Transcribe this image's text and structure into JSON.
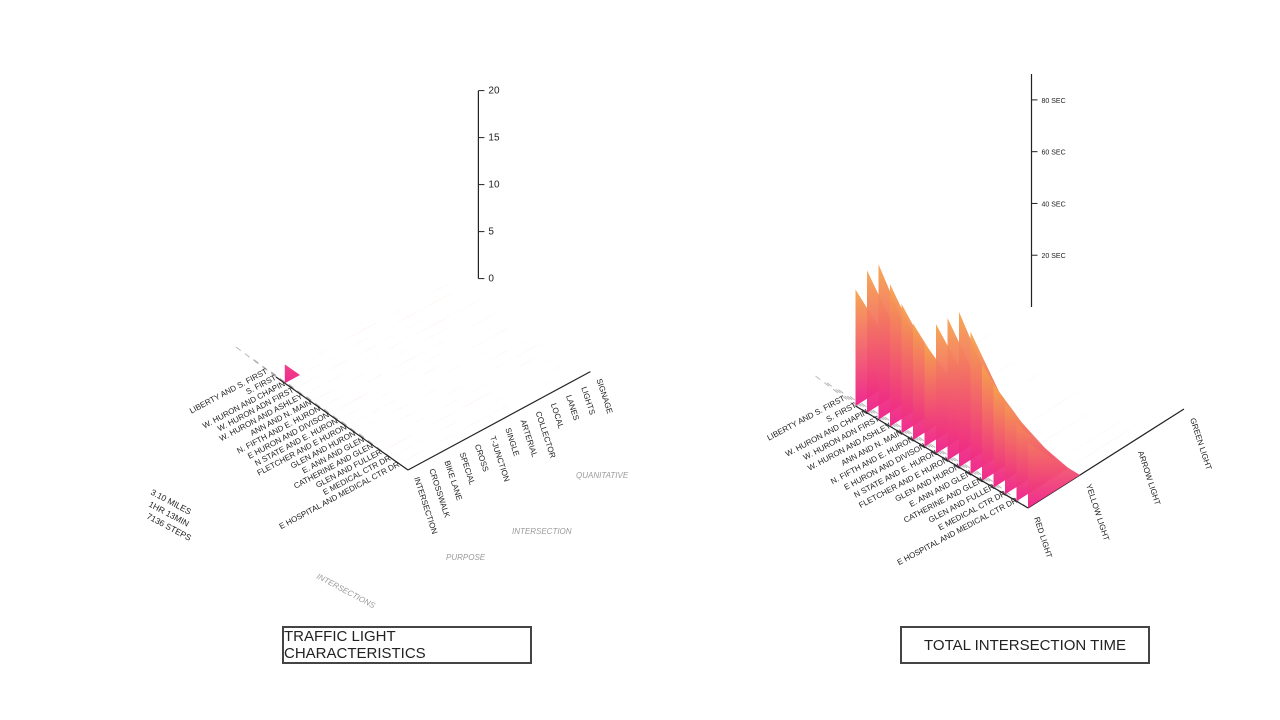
{
  "colors": {
    "low": "#ee1f8a",
    "high": "#f6a44c",
    "axis": "#222222",
    "guide": "#8a8a8a",
    "subtle": "#9a9a9a"
  },
  "charts": {
    "traffic_light": {
      "caption": "TRAFFIC LIGHT CHARACTERISTICS",
      "summary": [
        "3.10 MILES",
        "1HR 13MIN",
        "7136 STEPS"
      ],
      "group_labels": [
        "INTERSECTIONS",
        "PURPOSE",
        "INTERSECTION",
        "QUANITATIVE"
      ]
    },
    "intersection_time": {
      "caption": "TOTAL INTERSECTION TIME"
    }
  },
  "chart_data": [
    {
      "type": "area",
      "title": "TRAFFIC LIGHT CHARACTERISTICS",
      "rows": [
        "LIBERTY AND S. FIRST",
        "S. FIRST",
        "W. HURON AND CHAPIN",
        "W. HURON ADN FIRST",
        "W. HURON AND ASHLEY",
        "ANN AND N. MAIN",
        "N. FIFTH AND E. HURON",
        "E HURON AND DIVISON",
        "N STATE AND E. HURON",
        "FLETCHER AND E HURON",
        "GLEN AND HURON",
        "E. ANN AND GLEN",
        "CATHERINE AND GLEN",
        "GLEN AND FULLER",
        "E MEDICAL CTR DR",
        "E HOSPITAL AND MEDICAL CTR DR"
      ],
      "columns": [
        "INTERSECTION",
        "CROSSWALK",
        "BIKE LANE",
        "SPECIAL",
        "CROSS",
        "T-JUNCTION",
        "SINGLE",
        "ARTERIAL",
        "COLLECTOR",
        "LOCAL",
        "LANES",
        "LIGHTS",
        "SIGNAGE"
      ],
      "z_ticks": [
        "0",
        "5",
        "10",
        "15",
        "20"
      ],
      "zlim": [
        0,
        20
      ],
      "series": [
        {
          "values": [
            0,
            0,
            0,
            0,
            0,
            0,
            0,
            0,
            0,
            0,
            0,
            0,
            0
          ]
        },
        {
          "values": [
            2,
            0,
            0,
            0,
            0,
            0,
            0,
            0,
            0,
            0,
            0,
            0,
            0
          ]
        },
        {
          "values": [
            0,
            0,
            0,
            0,
            0,
            0,
            0,
            0,
            0,
            0,
            0,
            0,
            0
          ]
        },
        {
          "values": [
            0,
            0,
            0,
            0,
            0,
            0,
            0,
            0,
            0,
            0,
            0,
            0,
            0
          ]
        },
        {
          "values": [
            0,
            0,
            0,
            0,
            0,
            0,
            0,
            0,
            0,
            0,
            0,
            0,
            0
          ]
        },
        {
          "values": [
            0,
            0,
            0,
            0,
            0,
            0,
            0,
            0,
            0,
            0,
            0,
            0,
            0
          ]
        },
        {
          "values": [
            0,
            0,
            0,
            0,
            0,
            0,
            0,
            0,
            0,
            0,
            0,
            0,
            0
          ]
        },
        {
          "values": [
            0,
            0,
            0,
            0,
            0,
            0,
            0,
            0,
            0,
            0,
            0,
            0,
            0
          ]
        },
        {
          "values": [
            0,
            0,
            0,
            0,
            0,
            0,
            0,
            0,
            0,
            0,
            0,
            0,
            0
          ]
        },
        {
          "values": [
            0,
            0,
            0,
            0,
            0,
            0,
            0,
            0,
            0,
            0,
            0,
            0,
            0
          ]
        },
        {
          "values": [
            0,
            0,
            0,
            0,
            0,
            0,
            0,
            0,
            0,
            0,
            0,
            0,
            0
          ]
        },
        {
          "values": [
            0,
            0,
            0,
            0,
            0,
            0,
            0,
            0,
            0,
            0,
            0,
            0,
            0
          ]
        },
        {
          "values": [
            0,
            0,
            0,
            0,
            0,
            0,
            0,
            0,
            0,
            0,
            0,
            0,
            0
          ]
        },
        {
          "values": [
            0,
            0,
            0,
            0,
            0,
            0,
            0,
            0,
            0,
            0,
            0,
            0,
            0
          ]
        },
        {
          "values": [
            0,
            0,
            0,
            0,
            0,
            0,
            0,
            0,
            0,
            0,
            0,
            0,
            0
          ]
        },
        {
          "values": [
            0,
            0,
            0,
            0,
            0,
            0,
            0,
            0,
            0,
            0,
            0,
            0,
            0
          ]
        }
      ]
    },
    {
      "type": "area",
      "title": "TOTAL INTERSECTION TIME",
      "rows": [
        "LIBERTY AND S. FIRST",
        "S. FIRST",
        "W. HURON AND CHAPIN",
        "W. HURON ADN FIRST",
        "W. HURON AND ASHLEY",
        "ANN AND N. MAIN",
        "N. FIFTH AND E. HURON",
        "E HURON AND DIVISON",
        "N STATE AND E. HURON",
        "FLETCHER AND E HURON",
        "GLEN AND HURON",
        "E. ANN AND GLEN",
        "CATHERINE AND GLEN",
        "GLEN AND FULLER",
        "E MEDICAL CTR DR",
        "E HOSPITAL AND MEDICAL CTR DR"
      ],
      "columns": [
        "RED LIGHT",
        "YELLOW LIGHT",
        "ARROW LIGHT",
        "GREEN LIGHT"
      ],
      "z_ticks": [
        "20 SEC",
        "40 SEC",
        "60 SEC",
        "80 SEC"
      ],
      "zlim": [
        0,
        90
      ],
      "series": [
        {
          "values": [
            45,
            0,
            0,
            0
          ]
        },
        {
          "values": [
            55,
            0,
            0,
            0
          ]
        },
        {
          "values": [
            60,
            0,
            0,
            0
          ]
        },
        {
          "values": [
            55,
            0,
            0,
            0
          ]
        },
        {
          "values": [
            50,
            0,
            0,
            0
          ]
        },
        {
          "values": [
            45,
            0,
            0,
            0
          ]
        },
        {
          "values": [
            40,
            0,
            0,
            0
          ]
        },
        {
          "values": [
            50,
            0,
            0,
            0
          ]
        },
        {
          "values": [
            55,
            0,
            0,
            0
          ]
        },
        {
          "values": [
            60,
            0,
            0,
            0
          ]
        },
        {
          "values": [
            55,
            0,
            0,
            0
          ]
        },
        {
          "values": [
            45,
            0,
            0,
            0
          ]
        },
        {
          "values": [
            40,
            0,
            0,
            0
          ]
        },
        {
          "values": [
            35,
            0,
            0,
            0
          ]
        },
        {
          "values": [
            30,
            0,
            0,
            0
          ]
        },
        {
          "values": [
            25,
            0,
            0,
            0
          ]
        }
      ]
    }
  ]
}
